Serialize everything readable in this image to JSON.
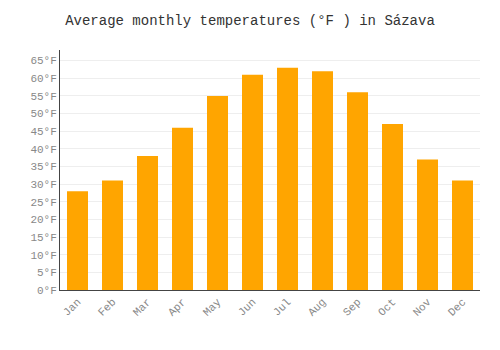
{
  "chart_data": {
    "type": "bar",
    "title": "Average monthly temperatures (°F ) in Sázava",
    "categories": [
      "Jan",
      "Feb",
      "Mar",
      "Apr",
      "May",
      "Jun",
      "Jul",
      "Aug",
      "Sep",
      "Oct",
      "Nov",
      "Dec"
    ],
    "values": [
      28,
      31,
      38,
      46,
      55,
      61,
      63,
      62,
      56,
      47,
      37,
      31
    ],
    "color": "#FFA500",
    "ylim": [
      0,
      68
    ],
    "yticks": [
      {
        "value": 0,
        "label": "0°F"
      },
      {
        "value": 5,
        "label": "5°F"
      },
      {
        "value": 10,
        "label": "10°F"
      },
      {
        "value": 15,
        "label": "15°F"
      },
      {
        "value": 20,
        "label": "20°F"
      },
      {
        "value": 25,
        "label": "25°F"
      },
      {
        "value": 30,
        "label": "30°F"
      },
      {
        "value": 35,
        "label": "35°F"
      },
      {
        "value": 40,
        "label": "40°F"
      },
      {
        "value": 45,
        "label": "45°F"
      },
      {
        "value": 50,
        "label": "50°F"
      },
      {
        "value": 55,
        "label": "55°F"
      },
      {
        "value": 60,
        "label": "60°F"
      },
      {
        "value": 65,
        "label": "65°F"
      }
    ],
    "grid": true
  }
}
